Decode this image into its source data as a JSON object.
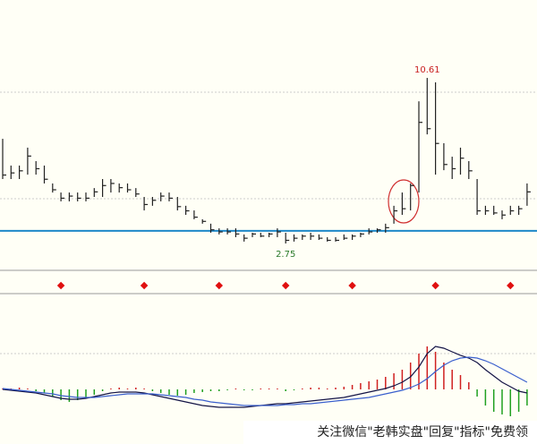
{
  "chart_data": {
    "type": "ohlc",
    "high": [
      7.72,
      6.45,
      6.45,
      7.3,
      6.66,
      6.45,
      5.6,
      5.17,
      5.17,
      5.17,
      5.17,
      5.38,
      5.81,
      5.81,
      5.6,
      5.6,
      5.38,
      4.96,
      4.96,
      5.17,
      5.17,
      4.96,
      4.54,
      4.32,
      3.9,
      3.69,
      3.47,
      3.47,
      3.47,
      3.18,
      3.26,
      3.26,
      3.26,
      3.47,
      3.26,
      3.18,
      3.18,
      3.26,
      3.18,
      3.05,
      3.05,
      3.18,
      3.18,
      3.26,
      3.47,
      3.47,
      3.69,
      4.54,
      5.17,
      5.6,
      9.5,
      10.61,
      10.4,
      7.51,
      6.87,
      7.3,
      6.66,
      5.81,
      4.54,
      4.54,
      4.32,
      4.54,
      4.54,
      5.6
    ],
    "low": [
      5.81,
      5.81,
      5.81,
      6.02,
      6.02,
      5.6,
      5.17,
      4.75,
      4.75,
      4.75,
      4.75,
      4.96,
      4.96,
      5.17,
      5.17,
      5.17,
      4.96,
      4.32,
      4.54,
      4.75,
      4.75,
      4.32,
      4.11,
      3.9,
      3.69,
      3.26,
      3.18,
      3.18,
      3.05,
      2.84,
      3.05,
      3.05,
      3.05,
      3.05,
      2.75,
      2.84,
      2.92,
      2.92,
      2.92,
      2.84,
      2.84,
      2.92,
      2.92,
      3.05,
      3.18,
      3.26,
      3.26,
      3.69,
      4.11,
      4.32,
      5.17,
      7.93,
      6.02,
      6.23,
      5.81,
      6.02,
      5.81,
      4.11,
      4.11,
      4.11,
      3.9,
      4.11,
      4.11,
      4.54
    ],
    "close": [
      6.0,
      6.1,
      6.2,
      6.9,
      6.3,
      5.8,
      5.3,
      4.9,
      5.0,
      4.9,
      4.9,
      5.2,
      5.5,
      5.6,
      5.4,
      5.3,
      5.1,
      4.6,
      4.8,
      5.0,
      4.9,
      4.5,
      4.3,
      4.0,
      3.8,
      3.4,
      3.3,
      3.3,
      3.2,
      3.0,
      3.2,
      3.1,
      3.2,
      3.3,
      2.9,
      3.0,
      3.1,
      3.1,
      3.0,
      2.9,
      2.9,
      3.0,
      3.1,
      3.2,
      3.3,
      3.4,
      3.5,
      4.3,
      4.4,
      5.5,
      8.5,
      8.2,
      7.5,
      6.5,
      6.3,
      6.8,
      6.2,
      4.3,
      4.3,
      4.2,
      4.1,
      4.3,
      4.4,
      5.2
    ],
    "color": "#222222",
    "ylim": [
      1.56,
      14.31
    ],
    "reference_line": 3.35,
    "reference_color": "#1e88c8",
    "signals": [
      7,
      17,
      26,
      34,
      42,
      52,
      61
    ],
    "signal_color": "#e01010",
    "annotations": [
      {
        "value": 10.61,
        "bar": 51,
        "color": "#c81e1e"
      },
      {
        "value": 2.75,
        "bar": 34,
        "color": "#2a7a2a"
      }
    ],
    "macd": {
      "ylim": [
        -60,
        60
      ],
      "hist": [
        1,
        1,
        2,
        1,
        -2,
        -4,
        -8,
        -12,
        -14,
        -12,
        -10,
        -6,
        -2,
        1,
        2,
        1,
        2,
        1,
        -2,
        -4,
        -6,
        -7,
        -6,
        -4,
        -3,
        -2,
        -2,
        -1,
        1,
        -1,
        -1,
        1,
        1,
        1,
        -2,
        -1,
        1,
        2,
        2,
        1,
        2,
        3,
        5,
        7,
        9,
        11,
        14,
        18,
        22,
        30,
        40,
        48,
        42,
        30,
        22,
        16,
        8,
        -8,
        -18,
        -25,
        -28,
        -30,
        -25,
        -18
      ],
      "dif": [
        0,
        -1,
        -2,
        -3,
        -4,
        -6,
        -8,
        -10,
        -11,
        -11,
        -10,
        -8,
        -6,
        -4,
        -3,
        -3,
        -3,
        -4,
        -6,
        -8,
        -10,
        -12,
        -14,
        -16,
        -18,
        -19,
        -20,
        -20,
        -20,
        -20,
        -19,
        -18,
        -17,
        -16,
        -16,
        -15,
        -14,
        -13,
        -12,
        -11,
        -10,
        -9,
        -7,
        -5,
        -3,
        -1,
        1,
        4,
        8,
        14,
        25,
        40,
        48,
        46,
        42,
        38,
        35,
        30,
        22,
        15,
        8,
        3,
        -2,
        -4
      ],
      "dea": [
        1,
        0,
        -1,
        -2,
        -3,
        -4,
        -5,
        -7,
        -8,
        -9,
        -9,
        -9,
        -8,
        -7,
        -6,
        -5,
        -5,
        -5,
        -5,
        -6,
        -7,
        -8,
        -9,
        -11,
        -12,
        -14,
        -15,
        -16,
        -17,
        -18,
        -18,
        -18,
        -18,
        -18,
        -17,
        -17,
        -16,
        -16,
        -15,
        -14,
        -13,
        -12,
        -11,
        -10,
        -9,
        -7,
        -5,
        -3,
        -1,
        2,
        6,
        12,
        20,
        27,
        32,
        35,
        36,
        35,
        32,
        28,
        23,
        18,
        13,
        8
      ],
      "up_color": "#d02020",
      "down_color": "#20a020",
      "dif_color": "#141446",
      "dea_color": "#3a5fcd"
    },
    "watermark": "关注微信\"老韩实盘\"回复\"指标\"免费领"
  }
}
